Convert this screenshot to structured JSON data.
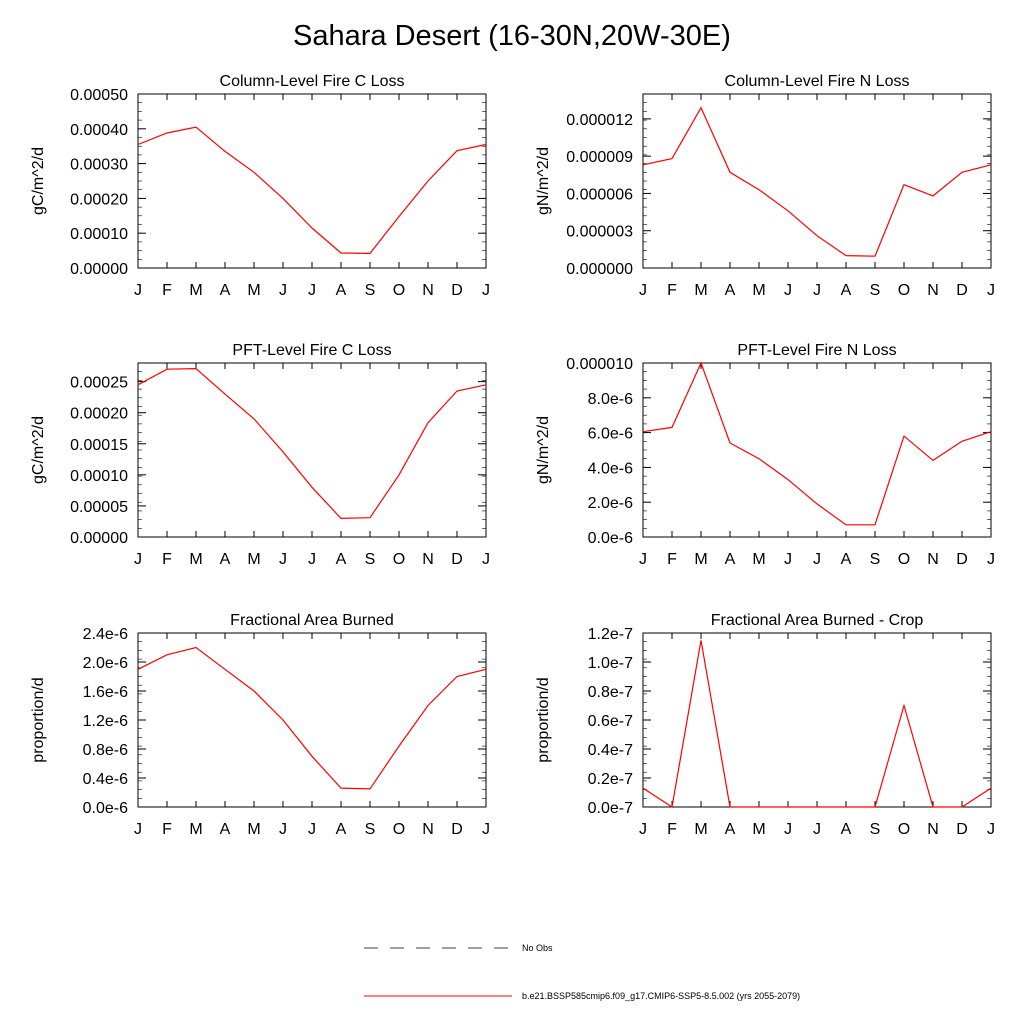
{
  "page": {
    "title": "Sahara Desert (16-30N,20W-30E)"
  },
  "colors": {
    "series": "#ff0000",
    "axis": "#000000"
  },
  "legend": {
    "obs_label": "No Obs",
    "model_label": "b.e21.BSSP585cmip6.f09_g17.CMIP6-SSP5-8.5.002 (yrs 2055-2079)"
  },
  "chart_data": [
    {
      "type": "line",
      "title": "Column-Level Fire C Loss",
      "ylabel": "gC/m^2/d",
      "categories": [
        "J",
        "F",
        "M",
        "A",
        "M",
        "J",
        "J",
        "A",
        "S",
        "O",
        "N",
        "D",
        "J"
      ],
      "ylim": [
        0,
        0.0005
      ],
      "yticks": [
        "0.00000",
        "0.00010",
        "0.00020",
        "0.00030",
        "0.00040",
        "0.00050"
      ],
      "values": [
        0.000355,
        0.000388,
        0.000405,
        0.000335,
        0.000275,
        0.0002,
        0.000115,
        4.3e-05,
        4.2e-05,
        0.000148,
        0.00025,
        0.000337,
        0.000355
      ]
    },
    {
      "type": "line",
      "title": "Column-Level Fire N Loss",
      "ylabel": "gN/m^2/d",
      "categories": [
        "J",
        "F",
        "M",
        "A",
        "M",
        "J",
        "J",
        "A",
        "S",
        "O",
        "N",
        "D",
        "J"
      ],
      "ylim": [
        0,
        1.4e-05
      ],
      "yticks": [
        "0.000000",
        "0.000003",
        "0.000006",
        "0.000009",
        "0.000012"
      ],
      "values": [
        8.3e-06,
        8.8e-06,
        1.29e-05,
        7.7e-06,
        6.3e-06,
        4.6e-06,
        2.6e-06,
        1e-06,
        9.5e-07,
        6.7e-06,
        5.8e-06,
        7.7e-06,
        8.3e-06
      ]
    },
    {
      "type": "line",
      "title": "PFT-Level Fire C Loss",
      "ylabel": "gC/m^2/d",
      "categories": [
        "J",
        "F",
        "M",
        "A",
        "M",
        "J",
        "J",
        "A",
        "S",
        "O",
        "N",
        "D",
        "J"
      ],
      "ylim": [
        0,
        0.00028
      ],
      "yticks": [
        "0.00000",
        "0.00005",
        "0.00010",
        "0.00015",
        "0.00020",
        "0.00025"
      ],
      "values": [
        0.000245,
        0.00027,
        0.000271,
        0.00023,
        0.00019,
        0.000137,
        8e-05,
        3e-05,
        3.1e-05,
        0.0001,
        0.000184,
        0.000235,
        0.000245
      ]
    },
    {
      "type": "line",
      "title": "PFT-Level Fire N Loss",
      "ylabel": "gN/m^2/d",
      "categories": [
        "J",
        "F",
        "M",
        "A",
        "M",
        "J",
        "J",
        "A",
        "S",
        "O",
        "N",
        "D",
        "J"
      ],
      "ylim": [
        0,
        1e-05
      ],
      "yticks": [
        "0.0e-6",
        "2.0e-6",
        "4.0e-6",
        "6.0e-6",
        "8.0e-6",
        "0.000010"
      ],
      "values": [
        6.05e-06,
        6.3e-06,
        1e-05,
        5.4e-06,
        4.5e-06,
        3.3e-06,
        1.9e-06,
        7e-07,
        7e-07,
        5.8e-06,
        4.4e-06,
        5.5e-06,
        6.05e-06
      ]
    },
    {
      "type": "line",
      "title": "Fractional Area Burned",
      "ylabel": "proportion/d",
      "categories": [
        "J",
        "F",
        "M",
        "A",
        "M",
        "J",
        "J",
        "A",
        "S",
        "O",
        "N",
        "D",
        "J"
      ],
      "ylim": [
        0,
        2.4e-06
      ],
      "yticks": [
        "0.0e-6",
        "0.4e-6",
        "0.8e-6",
        "1.2e-6",
        "1.6e-6",
        "2.0e-6",
        "2.4e-6"
      ],
      "values": [
        1.9e-06,
        2.1e-06,
        2.2e-06,
        1.9e-06,
        1.6e-06,
        1.2e-06,
        7e-07,
        2.6e-07,
        2.5e-07,
        8.4e-07,
        1.4e-06,
        1.8e-06,
        1.9e-06
      ]
    },
    {
      "type": "line",
      "title": "Fractional Area Burned - Crop",
      "ylabel": "proportion/d",
      "categories": [
        "J",
        "F",
        "M",
        "A",
        "M",
        "J",
        "J",
        "A",
        "S",
        "O",
        "N",
        "D",
        "J"
      ],
      "ylim": [
        0,
        1.2e-07
      ],
      "yticks": [
        "0.0e-7",
        "0.2e-7",
        "0.4e-7",
        "0.6e-7",
        "0.8e-7",
        "1.0e-7",
        "1.2e-7"
      ],
      "values": [
        1.3e-08,
        0,
        1.15e-07,
        0,
        0,
        0,
        0,
        0,
        0,
        7e-08,
        0,
        0,
        1.3e-08
      ]
    }
  ]
}
